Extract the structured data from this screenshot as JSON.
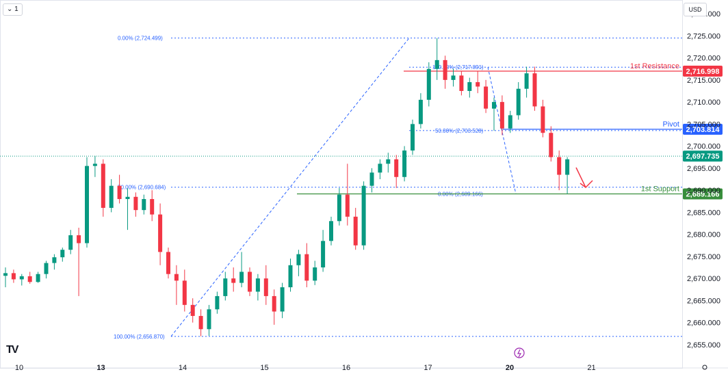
{
  "header": {
    "interval_badge": "⌄ 1",
    "currency_badge": "USD",
    "logo_text": "TV"
  },
  "chart_data": {
    "type": "candlestick",
    "ylim": [
      2652.5,
      2732.5
    ],
    "y_ticks": [
      2655,
      2660,
      2665,
      2670,
      2675,
      2680,
      2685,
      2690,
      2695,
      2700,
      2705,
      2710,
      2715,
      2720,
      2725,
      2730
    ],
    "y_tick_labels": [
      "2,655.000",
      "2,660.000",
      "2,665.000",
      "2,670.000",
      "2,675.000",
      "2,680.000",
      "2,685.000",
      "2,690.000",
      "2,695.000",
      "2,700.000",
      "2,705.000",
      "2,710.000",
      "2,715.000",
      "2,720.000",
      "2,725.000",
      "2,730.000"
    ],
    "x_ticks": [
      {
        "label": "10",
        "x": 0
      },
      {
        "label": "13",
        "x": 10
      },
      {
        "label": "14",
        "x": 20
      },
      {
        "label": "15",
        "x": 30
      },
      {
        "label": "16",
        "x": 40
      },
      {
        "label": "17",
        "x": 50
      },
      {
        "label": "20",
        "x": 60
      },
      {
        "label": "21",
        "x": 70
      }
    ],
    "bold_ticks": [
      "13",
      "20"
    ],
    "candles": [
      [
        2670.6,
        2672.5,
        2668.0,
        2671.2
      ],
      [
        2671.2,
        2672.0,
        2669.0,
        2669.8
      ],
      [
        2669.8,
        2671.0,
        2668.4,
        2670.5
      ],
      [
        2670.5,
        2671.5,
        2668.8,
        2669.2
      ],
      [
        2669.2,
        2671.5,
        2669.0,
        2671.0
      ],
      [
        2671.0,
        2674.0,
        2670.0,
        2673.5
      ],
      [
        2673.5,
        2675.5,
        2672.0,
        2674.8
      ],
      [
        2674.8,
        2677.0,
        2673.8,
        2676.5
      ],
      [
        2676.5,
        2681.0,
        2675.5,
        2679.8
      ],
      [
        2679.8,
        2681.5,
        2666.0,
        2678.0
      ],
      [
        2678.0,
        2697.5,
        2677.0,
        2695.5
      ],
      [
        2695.5,
        2697.8,
        2693.0,
        2696.0
      ],
      [
        2696.0,
        2697.0,
        2684.0,
        2686.0
      ],
      [
        2686.0,
        2692.5,
        2685.0,
        2691.0
      ],
      [
        2691.0,
        2693.5,
        2687.0,
        2688.0
      ],
      [
        2688.0,
        2690.5,
        2681.0,
        2688.5
      ],
      [
        2688.5,
        2689.5,
        2684.0,
        2685.5
      ],
      [
        2685.5,
        2689.0,
        2684.5,
        2688.0
      ],
      [
        2688.0,
        2690.0,
        2683.0,
        2684.5
      ],
      [
        2684.5,
        2687.0,
        2673.0,
        2676.0
      ],
      [
        2676.0,
        2677.0,
        2670.0,
        2671.0
      ],
      [
        2671.0,
        2673.0,
        2664.0,
        2669.5
      ],
      [
        2669.5,
        2672.0,
        2662.5,
        2664.0
      ],
      [
        2664.0,
        2665.5,
        2660.0,
        2661.5
      ],
      [
        2661.5,
        2663.0,
        2656.9,
        2658.5
      ],
      [
        2658.5,
        2664.0,
        2657.0,
        2663.0
      ],
      [
        2663.0,
        2667.0,
        2662.0,
        2666.0
      ],
      [
        2666.0,
        2671.5,
        2665.0,
        2670.0
      ],
      [
        2670.0,
        2672.5,
        2667.0,
        2669.0
      ],
      [
        2669.0,
        2676.0,
        2668.0,
        2671.5
      ],
      [
        2671.5,
        2672.5,
        2666.0,
        2667.0
      ],
      [
        2667.0,
        2671.0,
        2665.0,
        2670.0
      ],
      [
        2670.0,
        2673.0,
        2664.0,
        2666.0
      ],
      [
        2666.0,
        2667.5,
        2659.5,
        2662.5
      ],
      [
        2662.5,
        2669.0,
        2661.0,
        2668.0
      ],
      [
        2668.0,
        2674.5,
        2667.0,
        2673.0
      ],
      [
        2673.0,
        2676.5,
        2670.5,
        2675.5
      ],
      [
        2675.5,
        2678.0,
        2668.0,
        2669.5
      ],
      [
        2669.5,
        2674.0,
        2668.5,
        2672.5
      ],
      [
        2672.5,
        2681.0,
        2671.5,
        2678.5
      ],
      [
        2678.5,
        2684.0,
        2677.5,
        2683.0
      ],
      [
        2683.0,
        2690.5,
        2682.0,
        2689.0
      ],
      [
        2689.0,
        2696.0,
        2682.0,
        2684.0
      ],
      [
        2684.0,
        2686.0,
        2676.5,
        2677.5
      ],
      [
        2677.5,
        2692.0,
        2676.5,
        2691.0
      ],
      [
        2691.0,
        2695.0,
        2689.5,
        2694.0
      ],
      [
        2694.0,
        2697.0,
        2692.5,
        2696.0
      ],
      [
        2696.0,
        2698.5,
        2694.0,
        2697.0
      ],
      [
        2697.0,
        2698.0,
        2690.5,
        2693.0
      ],
      [
        2693.0,
        2700.0,
        2692.0,
        2699.0
      ],
      [
        2699.0,
        2706.0,
        2698.0,
        2705.0
      ],
      [
        2705.0,
        2712.0,
        2704.0,
        2710.5
      ],
      [
        2710.5,
        2719.0,
        2709.0,
        2717.5
      ],
      [
        2717.5,
        2724.5,
        2715.0,
        2719.5
      ],
      [
        2719.5,
        2720.5,
        2713.0,
        2715.0
      ],
      [
        2715.0,
        2717.5,
        2713.5,
        2716.0
      ],
      [
        2716.0,
        2717.0,
        2711.5,
        2712.5
      ],
      [
        2712.5,
        2715.5,
        2711.0,
        2714.5
      ],
      [
        2714.5,
        2717.0,
        2712.0,
        2713.5
      ],
      [
        2713.5,
        2715.0,
        2707.5,
        2708.5
      ],
      [
        2708.5,
        2711.0,
        2703.5,
        2710.0
      ],
      [
        2710.0,
        2711.5,
        2702.5,
        2704.0
      ],
      [
        2704.0,
        2708.0,
        2703.0,
        2707.0
      ],
      [
        2707.0,
        2714.5,
        2706.0,
        2713.0
      ],
      [
        2713.0,
        2718.0,
        2711.0,
        2716.5
      ],
      [
        2716.5,
        2718.0,
        2708.0,
        2709.0
      ],
      [
        2709.0,
        2710.5,
        2702.0,
        2703.0
      ],
      [
        2703.0,
        2704.5,
        2696.5,
        2697.5
      ],
      [
        2697.5,
        2699.0,
        2690.0,
        2693.5
      ],
      [
        2693.5,
        2697.5,
        2689.2,
        2697.0
      ]
    ],
    "last_price": 2697.735,
    "levels": [
      {
        "name": "1st Resistance",
        "value": 2716.998,
        "price_label": "2,716.998",
        "color": "#f23645"
      },
      {
        "name": "Pivot",
        "value": 2703.814,
        "price_label": "2,703.814",
        "color": "#2962ff"
      },
      {
        "name": "1st Support",
        "value": 2689.166,
        "price_label": "2,689.166",
        "color": "#388e3c"
      }
    ],
    "last_price_label": "2,697.735",
    "fib_labels": [
      {
        "text": "0.00% (2,724.499)",
        "value": 2724.499
      },
      {
        "text": "50.00% (2,690.684)",
        "value": 2690.684
      },
      {
        "text": "100.00% (2,656.870)",
        "value": 2656.87
      },
      {
        "text": "100.00% (2,717.891)",
        "value": 2717.891
      },
      {
        "text": "50.00% (2,703.528)",
        "value": 2703.528
      },
      {
        "text": "0.00% (2,689.166)",
        "value": 2689.166
      }
    ],
    "colors": {
      "up": "#089981",
      "down": "#f23645",
      "fib": "#2962ff",
      "axis_text": "#131722",
      "last_price_bg": "#089981"
    }
  }
}
